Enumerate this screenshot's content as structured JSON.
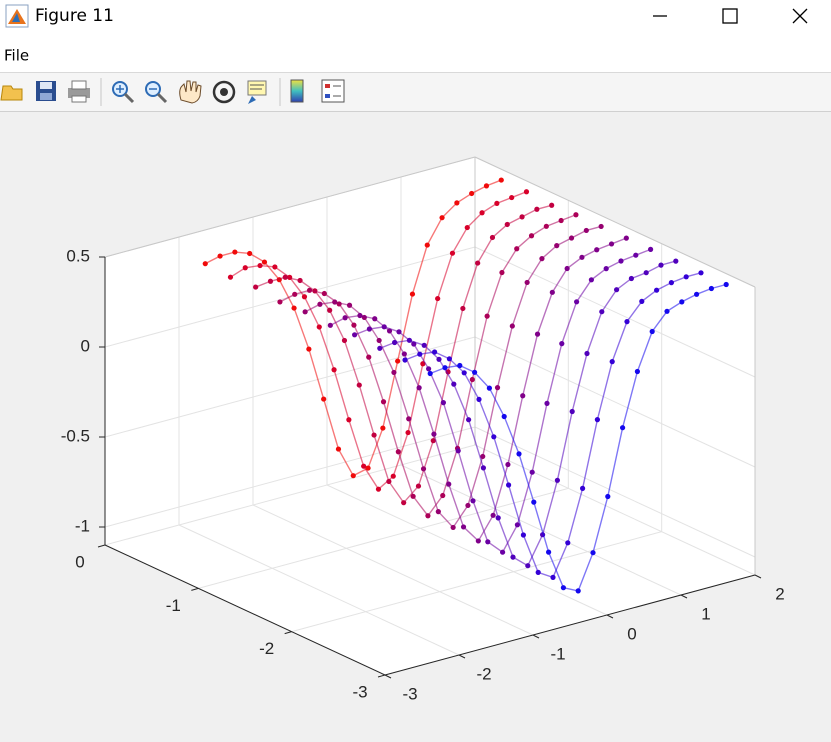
{
  "window": {
    "title": "Figure 11",
    "menu": [
      "File"
    ]
  },
  "chart_data": {
    "type": "scatter3",
    "x": [
      -2.2,
      -2,
      -1.8,
      -1.6,
      -1.4,
      -1.2,
      -1,
      -0.8,
      -0.6,
      -0.4,
      -0.2,
      0,
      0.2,
      0.4,
      0.6,
      0.8,
      1,
      1.2,
      1.4,
      1.6,
      1.8
    ],
    "series": [
      {
        "color": "#f00a0a",
        "y": -0.44,
        "z": [
          0.48,
          0.5,
          0.5,
          0.47,
          0.4,
          0.28,
          0.1,
          -0.15,
          -0.45,
          -0.75,
          -0.92,
          -0.9,
          -0.7,
          -0.35,
          0.0,
          0.25,
          0.38,
          0.44,
          0.47,
          0.49,
          0.5
        ]
      },
      {
        "color": "#d8002a",
        "y": -0.71,
        "z": [
          0.47,
          0.5,
          0.49,
          0.46,
          0.38,
          0.25,
          0.06,
          -0.2,
          -0.5,
          -0.78,
          -0.93,
          -0.88,
          -0.66,
          -0.3,
          0.04,
          0.27,
          0.39,
          0.45,
          0.48,
          0.49,
          0.5
        ]
      },
      {
        "color": "#c20040",
        "y": -0.98,
        "z": [
          0.48,
          0.49,
          0.49,
          0.45,
          0.37,
          0.24,
          0.05,
          -0.22,
          -0.52,
          -0.8,
          -0.94,
          -0.87,
          -0.64,
          -0.28,
          0.05,
          0.28,
          0.4,
          0.45,
          0.47,
          0.49,
          0.49
        ]
      },
      {
        "color": "#ac0058",
        "y": -1.24,
        "z": [
          0.46,
          0.48,
          0.48,
          0.44,
          0.36,
          0.22,
          0.02,
          -0.25,
          -0.55,
          -0.82,
          -0.95,
          -0.86,
          -0.62,
          -0.26,
          0.07,
          0.29,
          0.4,
          0.45,
          0.48,
          0.49,
          0.5
        ]
      },
      {
        "color": "#960070",
        "y": -1.51,
        "z": [
          0.47,
          0.49,
          0.48,
          0.44,
          0.35,
          0.2,
          0.0,
          -0.28,
          -0.58,
          -0.84,
          -0.95,
          -0.85,
          -0.6,
          -0.24,
          0.08,
          0.3,
          0.41,
          0.46,
          0.48,
          0.5,
          0.5
        ]
      },
      {
        "color": "#80008a",
        "y": -1.78,
        "z": [
          0.46,
          0.48,
          0.47,
          0.43,
          0.34,
          0.19,
          -0.02,
          -0.3,
          -0.6,
          -0.86,
          -0.96,
          -0.84,
          -0.58,
          -0.22,
          0.1,
          0.31,
          0.42,
          0.46,
          0.48,
          0.49,
          0.5
        ]
      },
      {
        "color": "#6a00a4",
        "y": -2.04,
        "z": [
          0.47,
          0.48,
          0.47,
          0.42,
          0.33,
          0.17,
          -0.04,
          -0.33,
          -0.63,
          -0.88,
          -0.96,
          -0.83,
          -0.56,
          -0.2,
          0.11,
          0.32,
          0.42,
          0.46,
          0.48,
          0.49,
          0.5
        ]
      },
      {
        "color": "#5000bc",
        "y": -2.31,
        "z": [
          0.46,
          0.47,
          0.46,
          0.41,
          0.31,
          0.15,
          -0.07,
          -0.36,
          -0.66,
          -0.9,
          -0.97,
          -0.82,
          -0.54,
          -0.18,
          0.12,
          0.33,
          0.43,
          0.47,
          0.48,
          0.5,
          0.5
        ]
      },
      {
        "color": "#3400d6",
        "y": -2.58,
        "z": [
          0.46,
          0.47,
          0.46,
          0.4,
          0.3,
          0.13,
          -0.1,
          -0.39,
          -0.69,
          -0.92,
          -0.97,
          -0.8,
          -0.52,
          -0.16,
          0.14,
          0.34,
          0.43,
          0.47,
          0.49,
          0.5,
          0.5
        ]
      },
      {
        "color": "#1408ee",
        "y": -2.85,
        "z": [
          0.45,
          0.46,
          0.45,
          0.39,
          0.28,
          0.1,
          -0.13,
          -0.42,
          -0.72,
          -0.94,
          -0.98,
          -0.79,
          -0.5,
          -0.14,
          0.15,
          0.35,
          0.44,
          0.47,
          0.49,
          0.5,
          0.5
        ]
      }
    ],
    "xlim": [
      -3,
      2
    ],
    "ylim": [
      -3,
      0
    ],
    "zlim": [
      -1.1,
      0.5
    ],
    "xticks": [
      -3,
      -2,
      -1,
      0,
      1,
      2
    ],
    "yticks": [
      -3,
      -2,
      -1,
      0
    ],
    "zticks": [
      -1,
      -0.5,
      0,
      0.5
    ],
    "grid": true
  }
}
